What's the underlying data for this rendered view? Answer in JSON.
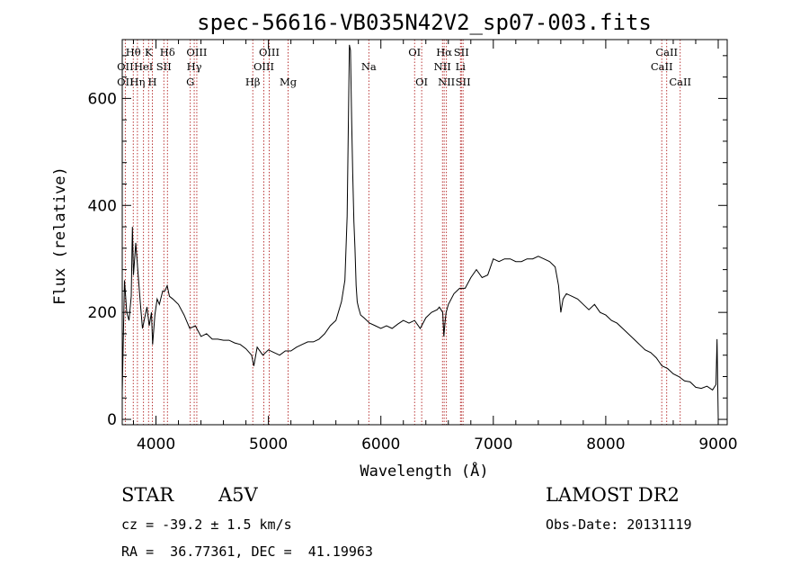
{
  "chart_data": {
    "type": "line",
    "title": "spec-56616-VB035N42V2_sp07-003.fits",
    "xlabel": "Wavelength (Å)",
    "ylabel": "Flux (relative)",
    "xlim": [
      3700,
      9080
    ],
    "ylim": [
      -10,
      710
    ],
    "xticks": [
      4000,
      5000,
      6000,
      7000,
      8000,
      9000
    ],
    "yticks": [
      0,
      200,
      400,
      600
    ],
    "grid": false,
    "series": [
      {
        "x": [
          3700,
          3720,
          3740,
          3760,
          3780,
          3790,
          3800,
          3810,
          3820,
          3840,
          3860,
          3880,
          3900,
          3920,
          3940,
          3960,
          3970,
          3990,
          4010,
          4030,
          4060,
          4080,
          4100,
          4120,
          4150,
          4200,
          4250,
          4300,
          4350,
          4400,
          4450,
          4500,
          4550,
          4600,
          4650,
          4700,
          4750,
          4800,
          4850,
          4870,
          4900,
          4950,
          5000,
          5050,
          5100,
          5150,
          5200,
          5250,
          5300,
          5350,
          5400,
          5450,
          5500,
          5550,
          5600,
          5650,
          5680,
          5700,
          5720,
          5730,
          5740,
          5750,
          5760,
          5770,
          5780,
          5790,
          5800,
          5820,
          5850,
          5900,
          5950,
          6000,
          6050,
          6100,
          6150,
          6200,
          6250,
          6300,
          6350,
          6400,
          6450,
          6500,
          6520,
          6550,
          6560,
          6570,
          6580,
          6600,
          6650,
          6700,
          6750,
          6800,
          6850,
          6900,
          6950,
          7000,
          7050,
          7100,
          7150,
          7200,
          7250,
          7300,
          7350,
          7400,
          7450,
          7500,
          7550,
          7580,
          7600,
          7620,
          7650,
          7700,
          7750,
          7800,
          7850,
          7900,
          7950,
          8000,
          8050,
          8100,
          8150,
          8200,
          8250,
          8300,
          8350,
          8400,
          8450,
          8500,
          8550,
          8600,
          8650,
          8700,
          8750,
          8800,
          8850,
          8900,
          8950,
          8980,
          8990,
          9000
        ],
        "y": [
          50,
          260,
          200,
          185,
          230,
          360,
          270,
          300,
          330,
          275,
          220,
          170,
          190,
          210,
          175,
          200,
          140,
          195,
          225,
          215,
          240,
          240,
          250,
          230,
          225,
          215,
          195,
          170,
          175,
          155,
          160,
          150,
          150,
          148,
          148,
          143,
          140,
          132,
          120,
          100,
          135,
          120,
          130,
          125,
          120,
          128,
          128,
          135,
          140,
          145,
          145,
          150,
          160,
          175,
          185,
          220,
          260,
          380,
          700,
          690,
          560,
          460,
          370,
          320,
          250,
          220,
          210,
          195,
          190,
          180,
          175,
          170,
          175,
          170,
          178,
          185,
          180,
          185,
          170,
          190,
          200,
          205,
          210,
          200,
          155,
          180,
          200,
          215,
          235,
          245,
          245,
          265,
          280,
          265,
          270,
          300,
          295,
          300,
          300,
          295,
          295,
          300,
          300,
          305,
          300,
          295,
          285,
          250,
          200,
          225,
          235,
          230,
          225,
          215,
          205,
          215,
          200,
          195,
          185,
          180,
          170,
          160,
          150,
          140,
          130,
          125,
          115,
          100,
          95,
          85,
          80,
          72,
          70,
          60,
          58,
          62,
          55,
          65,
          150,
          5
        ]
      }
    ],
    "emission_lines": [
      {
        "label": "OII",
        "wl": 3727
      },
      {
        "label": "Hθ",
        "wl": 3798
      },
      {
        "label": "Hη",
        "wl": 3835
      },
      {
        "label": "HeI",
        "wl": 3889
      },
      {
        "label": "K",
        "wl": 3934
      },
      {
        "label": "H",
        "wl": 3968
      },
      {
        "label": "SII",
        "wl": 4070
      },
      {
        "label": "Hδ",
        "wl": 4102
      },
      {
        "label": "G",
        "wl": 4305
      },
      {
        "label": "Hγ",
        "wl": 4340
      },
      {
        "label": "OIII",
        "wl": 4363
      },
      {
        "label": "Hβ",
        "wl": 4861
      },
      {
        "label": "OIII",
        "wl": 4959
      },
      {
        "label": "OIII",
        "wl": 5007
      },
      {
        "label": "Mg",
        "wl": 5175
      },
      {
        "label": "Na",
        "wl": 5893
      },
      {
        "label": "OI",
        "wl": 6300
      },
      {
        "label": "OI",
        "wl": 6363
      },
      {
        "label": "NII",
        "wl": 6548
      },
      {
        "label": "Hα",
        "wl": 6563
      },
      {
        "label": "NII",
        "wl": 6583
      },
      {
        "label": "Li",
        "wl": 6708
      },
      {
        "label": "SII",
        "wl": 6716
      },
      {
        "label": "SII",
        "wl": 6731
      },
      {
        "label": "CaII",
        "wl": 8498
      },
      {
        "label": "CaII",
        "wl": 8542
      },
      {
        "label": "CaII",
        "wl": 8662
      }
    ],
    "line_label_texts": [
      {
        "text": "OII",
        "anchor": 3727,
        "row": 2
      },
      {
        "text": "OII",
        "anchor": 3727,
        "row": 3
      },
      {
        "text": "Hθ",
        "anchor": 3798,
        "row": 1
      },
      {
        "text": "HeI",
        "anchor": 3889,
        "row": 2
      },
      {
        "text": "Hη",
        "anchor": 3835,
        "row": 3
      },
      {
        "text": "K",
        "anchor": 3934,
        "row": 1
      },
      {
        "text": "H",
        "anchor": 3968,
        "row": 3
      },
      {
        "text": "SII",
        "anchor": 4070,
        "row": 2
      },
      {
        "text": "Hδ",
        "anchor": 4102,
        "row": 1
      },
      {
        "text": "OIII",
        "anchor": 4363,
        "row": 1
      },
      {
        "text": "Hγ",
        "anchor": 4340,
        "row": 2
      },
      {
        "text": "G",
        "anchor": 4305,
        "row": 3
      },
      {
        "text": "Hβ",
        "anchor": 4861,
        "row": 3
      },
      {
        "text": "OIII",
        "anchor": 5007,
        "row": 1
      },
      {
        "text": "OIII",
        "anchor": 4959,
        "row": 2
      },
      {
        "text": "Mg",
        "anchor": 5175,
        "row": 3
      },
      {
        "text": "Na",
        "anchor": 5893,
        "row": 2
      },
      {
        "text": "OI",
        "anchor": 6300,
        "row": 1
      },
      {
        "text": "OI",
        "anchor": 6363,
        "row": 3
      },
      {
        "text": "Hα",
        "anchor": 6563,
        "row": 1
      },
      {
        "text": "SII",
        "anchor": 6716,
        "row": 1
      },
      {
        "text": "NII",
        "anchor": 6548,
        "row": 2
      },
      {
        "text": "Li",
        "anchor": 6708,
        "row": 2
      },
      {
        "text": "NII",
        "anchor": 6583,
        "row": 3
      },
      {
        "text": "SII",
        "anchor": 6731,
        "row": 3
      },
      {
        "text": "CaII",
        "anchor": 8542,
        "row": 1
      },
      {
        "text": "CaII",
        "anchor": 8498,
        "row": 2
      },
      {
        "text": "CaII",
        "anchor": 8662,
        "row": 3
      }
    ]
  },
  "colors": {
    "spectrum": "#000000",
    "line_markers": "#b22222",
    "axes": "#000000"
  },
  "info": {
    "object_class": "STAR",
    "subclass": "A5V",
    "survey": "LAMOST DR2",
    "redshift": "cz = -39.2 ± 1.5 km/s",
    "obs_date": "Obs-Date: 20131119",
    "coords": "RA =  36.77361, DEC =  41.19963"
  }
}
